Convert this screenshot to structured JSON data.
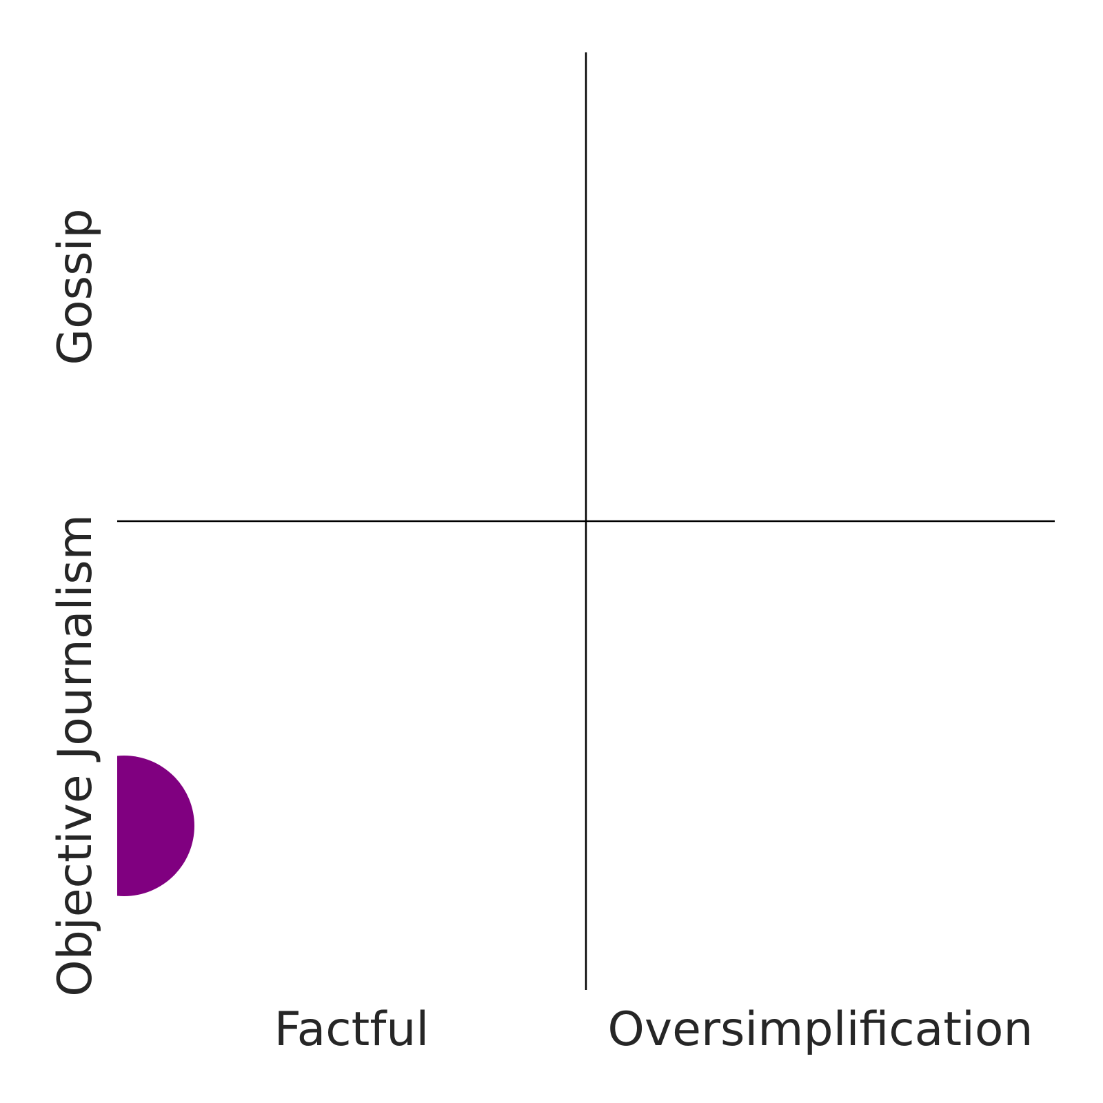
{
  "chart_data": {
    "type": "scatter",
    "title": "",
    "xlim": [
      0,
      2
    ],
    "ylim": [
      0,
      2
    ],
    "quadrant_dividers": {
      "x": 1,
      "y": 1
    },
    "x_labels": [
      {
        "text": "Factful",
        "position": 0.5
      },
      {
        "text": "Oversimplification",
        "position": 1.5
      }
    ],
    "y_labels": [
      {
        "text": "Objective Journalism",
        "position": 0.5
      },
      {
        "text": "Gossip",
        "position": 1.5
      }
    ],
    "points": [
      {
        "x": 0.0,
        "y": 0.35,
        "color": "#800080"
      }
    ]
  }
}
